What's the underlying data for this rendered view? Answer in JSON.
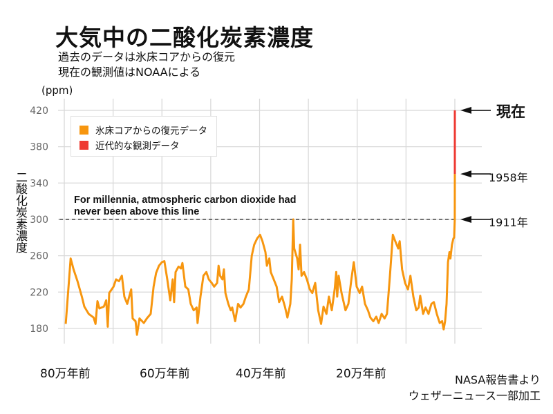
{
  "header": {
    "title": "大気中の二酸化炭素濃度",
    "subtitle_1": "過去のデータは氷床コアからの復元",
    "subtitle_2": "現在の観測値はNOAAによる"
  },
  "credit": {
    "line_1": "NASA報告書より",
    "line_2": "ウェザーニュース一部加工"
  },
  "colors": {
    "ice_core": "#f7960f",
    "observed": "#ee3a33",
    "grid": "#d9d9d9",
    "threshold": "#333333"
  },
  "chart_data": {
    "type": "line",
    "title": "大気中の二酸化炭素濃度",
    "ylabel": "二酸化炭素濃度",
    "yunit": "(ppm)",
    "ylim": [
      170,
      425
    ],
    "yticks": [
      180,
      220,
      260,
      300,
      340,
      380,
      420
    ],
    "xlim_kya": [
      800,
      0
    ],
    "xgrid_kya": [
      800,
      700,
      600,
      500,
      400,
      300,
      200,
      100,
      0
    ],
    "xtick_labels": [
      {
        "kya": 800,
        "label": "80万年前"
      },
      {
        "kya": 600,
        "label": "60万年前"
      },
      {
        "kya": 400,
        "label": "40万年前"
      },
      {
        "kya": 200,
        "label": "20万年前"
      }
    ],
    "grid": true,
    "legend_position": "top-left",
    "legend": [
      {
        "name": "氷床コアからの復元データ",
        "color": "#f7960f"
      },
      {
        "name": "近代的な観測データ",
        "color": "#ee3a33"
      }
    ],
    "threshold": {
      "value": 300,
      "style": "dashed",
      "label": "For millennia, atmospheric carbon dioxide had never been above this line"
    },
    "annotations": [
      {
        "label": "現在",
        "value": 420
      },
      {
        "label": "1958年",
        "value": 350
      },
      {
        "label": "1911年",
        "value": 300
      }
    ],
    "series": [
      {
        "name": "氷床コアからの復元データ",
        "x_kya": [
          797,
          787,
          781,
          773,
          764,
          759,
          750,
          740,
          736,
          732,
          728,
          719,
          714,
          711,
          708,
          699,
          694,
          688,
          682,
          677,
          671,
          663,
          660,
          654,
          651,
          646,
          637,
          631,
          623,
          617,
          612,
          606,
          600,
          595,
          589,
          583,
          578,
          575,
          572,
          566,
          561,
          558,
          552,
          546,
          541,
          535,
          529,
          527,
          521,
          515,
          509,
          504,
          498,
          493,
          487,
          484,
          481,
          476,
          473,
          470,
          464,
          459,
          456,
          450,
          444,
          439,
          433,
          428,
          422,
          416,
          411,
          405,
          399,
          394,
          388,
          385,
          380,
          377,
          371,
          365,
          360,
          354,
          348,
          343,
          337,
          334,
          331,
          329,
          323,
          320,
          317,
          314,
          309,
          303,
          297,
          292,
          286,
          280,
          274,
          269,
          263,
          258,
          252,
          246,
          243,
          241,
          238,
          232,
          224,
          218,
          212,
          207,
          201,
          195,
          190,
          184,
          178,
          173,
          167,
          161,
          156,
          150,
          144,
          139,
          133,
          127,
          122,
          116,
          113,
          108,
          102,
          96,
          91,
          85,
          79,
          74,
          71,
          65,
          60,
          54,
          48,
          43,
          37,
          31,
          26,
          23,
          20,
          17,
          14,
          11,
          9,
          6,
          3,
          1.4,
          0.1,
          0.05
        ],
        "y_ppm": [
          185,
          257,
          245,
          232,
          215,
          204,
          196,
          192,
          185,
          210,
          202,
          204,
          211,
          182,
          219,
          226,
          234,
          232,
          238,
          215,
          207,
          223,
          191,
          188,
          173,
          191,
          186,
          191,
          196,
          226,
          241,
          249,
          253,
          254,
          234,
          211,
          234,
          209,
          242,
          248,
          246,
          252,
          226,
          223,
          207,
          200,
          203,
          186,
          215,
          238,
          242,
          234,
          230,
          226,
          230,
          249,
          238,
          234,
          245,
          219,
          207,
          200,
          203,
          188,
          207,
          203,
          207,
          215,
          223,
          260,
          272,
          279,
          283,
          276,
          264,
          249,
          257,
          242,
          234,
          226,
          209,
          215,
          204,
          192,
          207,
          234,
          300,
          268,
          257,
          245,
          272,
          238,
          242,
          234,
          223,
          219,
          230,
          200,
          185,
          204,
          196,
          215,
          200,
          224,
          242,
          215,
          238,
          219,
          200,
          207,
          234,
          253,
          226,
          219,
          226,
          207,
          200,
          192,
          188,
          193,
          186,
          196,
          191,
          196,
          238,
          283,
          276,
          268,
          276,
          245,
          230,
          223,
          238,
          215,
          200,
          203,
          216,
          196,
          203,
          196,
          207,
          209,
          196,
          186,
          188,
          179,
          188,
          207,
          253,
          264,
          257,
          272,
          279,
          280,
          300,
          350
        ]
      },
      {
        "name": "近代的な観測データ",
        "x_kya": [
          0.05,
          0
        ],
        "y_ppm": [
          350,
          420
        ]
      }
    ]
  }
}
